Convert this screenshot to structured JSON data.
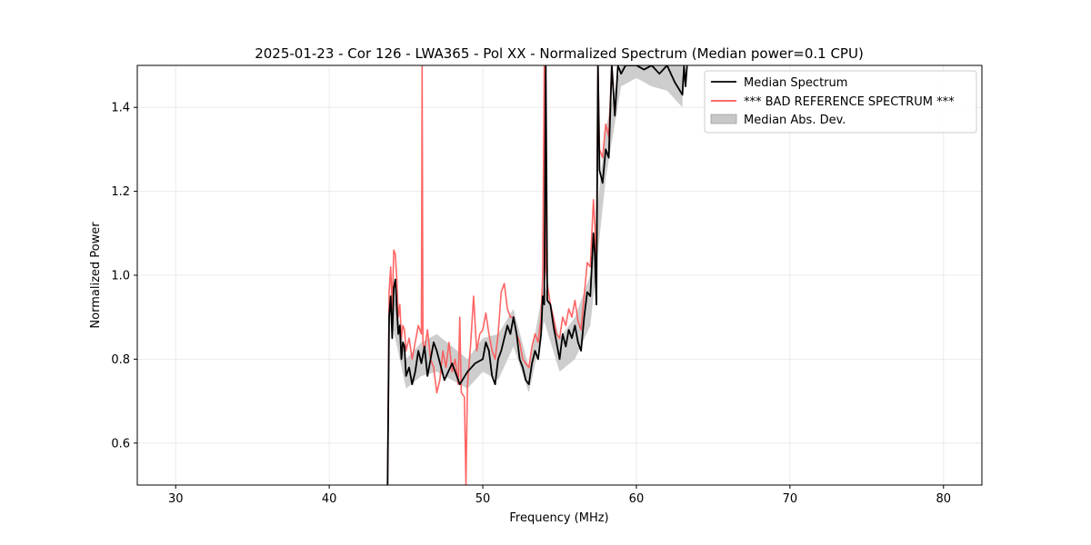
{
  "chart_data": {
    "type": "line",
    "title": "2025-01-23 - Cor 126 - LWA365 - Pol XX - Normalized Spectrum (Median power=0.1 CPU)",
    "xlabel": "Frequency (MHz)",
    "ylabel": "Normalized Power",
    "xlim": [
      27.5,
      82.5
    ],
    "ylim": [
      0.5,
      1.5
    ],
    "xticks": [
      30,
      40,
      50,
      60,
      70,
      80
    ],
    "xtick_labels": [
      "30",
      "40",
      "50",
      "60",
      "70",
      "80"
    ],
    "yticks": [
      0.6,
      0.8,
      1.0,
      1.2,
      1.4
    ],
    "ytick_labels": [
      "0.6",
      "0.8",
      "1.0",
      "1.2",
      "1.4"
    ],
    "grid": true,
    "legend_position": "top-right",
    "colors": {
      "median": "#000000",
      "reference": "#ff5555",
      "mad_fill": "#c8c8c8",
      "grid": "#e6e6e6"
    },
    "series": [
      {
        "name": "Median Spectrum",
        "style": "line",
        "color": "#000000",
        "x": [
          43.8,
          43.9,
          44.0,
          44.1,
          44.2,
          44.3,
          44.4,
          44.5,
          44.6,
          44.7,
          44.8,
          44.9,
          45.0,
          45.2,
          45.4,
          45.6,
          45.8,
          46.0,
          46.2,
          46.4,
          46.6,
          46.8,
          47.0,
          47.5,
          48.0,
          48.5,
          49.0,
          49.5,
          50.0,
          50.2,
          50.4,
          50.6,
          50.8,
          51.0,
          51.2,
          51.4,
          51.6,
          51.8,
          52.0,
          52.2,
          52.4,
          52.6,
          52.8,
          53.0,
          53.2,
          53.4,
          53.6,
          53.8,
          53.9,
          54.0,
          54.1,
          54.2,
          54.4,
          54.6,
          54.8,
          55.0,
          55.2,
          55.4,
          55.6,
          55.8,
          56.0,
          56.2,
          56.4,
          56.6,
          56.8,
          57.0,
          57.2,
          57.3,
          57.4,
          57.5,
          57.6,
          57.8,
          58.0,
          58.2,
          58.4,
          58.6,
          58.8,
          59.0,
          59.3,
          59.6,
          60.0,
          60.5,
          61.0,
          61.5,
          62.0,
          62.5,
          63.0,
          63.1,
          63.2,
          63.3
        ],
        "y": [
          0.5,
          0.9,
          0.95,
          0.85,
          0.97,
          0.99,
          0.92,
          0.86,
          0.88,
          0.8,
          0.84,
          0.83,
          0.76,
          0.78,
          0.74,
          0.77,
          0.82,
          0.79,
          0.83,
          0.76,
          0.8,
          0.84,
          0.82,
          0.75,
          0.79,
          0.74,
          0.77,
          0.79,
          0.8,
          0.84,
          0.82,
          0.76,
          0.74,
          0.8,
          0.82,
          0.85,
          0.88,
          0.86,
          0.9,
          0.86,
          0.8,
          0.78,
          0.75,
          0.74,
          0.79,
          0.82,
          0.8,
          0.86,
          0.95,
          0.93,
          1.5,
          0.94,
          0.93,
          0.88,
          0.84,
          0.8,
          0.86,
          0.83,
          0.87,
          0.85,
          0.88,
          0.84,
          0.82,
          0.9,
          0.96,
          0.95,
          1.1,
          1.05,
          0.93,
          1.5,
          1.25,
          1.22,
          1.3,
          1.28,
          1.5,
          1.38,
          1.5,
          1.48,
          1.5,
          1.5,
          1.5,
          1.49,
          1.5,
          1.48,
          1.5,
          1.46,
          1.43,
          1.5,
          1.45,
          1.5
        ]
      },
      {
        "name": "*** BAD REFERENCE SPECTRUM ***",
        "style": "line",
        "color": "#ff5555",
        "x": [
          43.8,
          43.9,
          44.0,
          44.1,
          44.2,
          44.3,
          44.4,
          44.5,
          44.6,
          44.7,
          44.8,
          44.9,
          45.0,
          45.2,
          45.4,
          45.6,
          45.8,
          46.0,
          46.05,
          46.1,
          46.2,
          46.4,
          46.6,
          46.8,
          47.0,
          47.2,
          47.4,
          47.6,
          47.8,
          48.0,
          48.2,
          48.4,
          48.5,
          48.6,
          48.8,
          48.9,
          49.0,
          49.2,
          49.4,
          49.6,
          49.8,
          50.0,
          50.2,
          50.4,
          50.6,
          50.8,
          51.0,
          51.2,
          51.4,
          51.6,
          51.8,
          52.0,
          52.2,
          52.4,
          52.6,
          52.8,
          53.0,
          53.2,
          53.4,
          53.6,
          53.8,
          53.9,
          54.0,
          54.1,
          54.2,
          54.4,
          54.6,
          54.8,
          55.0,
          55.2,
          55.4,
          55.6,
          55.8,
          56.0,
          56.2,
          56.4,
          56.6,
          56.8,
          57.0,
          57.2,
          57.3,
          57.4,
          57.5,
          57.6,
          57.8,
          58.0,
          58.2,
          58.4,
          58.5
        ],
        "y": [
          0.5,
          0.96,
          1.02,
          0.92,
          1.06,
          1.05,
          0.99,
          0.9,
          0.93,
          0.85,
          0.88,
          0.87,
          0.82,
          0.85,
          0.8,
          0.84,
          0.88,
          0.86,
          1.5,
          0.84,
          0.82,
          0.87,
          0.8,
          0.78,
          0.72,
          0.75,
          0.82,
          0.78,
          0.84,
          0.77,
          0.8,
          0.74,
          0.9,
          0.72,
          0.71,
          0.5,
          0.74,
          0.83,
          0.95,
          0.82,
          0.86,
          0.87,
          0.91,
          0.86,
          0.82,
          0.8,
          0.86,
          0.96,
          0.98,
          0.92,
          0.9,
          0.9,
          0.86,
          0.84,
          0.8,
          0.79,
          0.78,
          0.83,
          0.86,
          0.84,
          0.9,
          1.0,
          1.5,
          1.02,
          0.98,
          0.93,
          0.9,
          0.86,
          0.85,
          0.9,
          0.88,
          0.92,
          0.9,
          0.94,
          0.89,
          0.87,
          0.95,
          1.03,
          1.02,
          1.18,
          1.12,
          1.0,
          1.5,
          1.3,
          1.28,
          1.36,
          1.33,
          1.5,
          1.45
        ]
      },
      {
        "name": "Median Abs. Dev.",
        "style": "band",
        "color": "#c8c8c8",
        "x": [
          44.0,
          45.0,
          46.0,
          47.0,
          48.0,
          49.0,
          50.0,
          51.0,
          52.0,
          53.0,
          54.0,
          55.0,
          56.0,
          57.0,
          58.0,
          59.0,
          60.0,
          61.0,
          62.0,
          63.0
        ],
        "lower": [
          0.9,
          0.73,
          0.76,
          0.77,
          0.75,
          0.73,
          0.77,
          0.75,
          0.83,
          0.72,
          0.89,
          0.77,
          0.8,
          0.88,
          1.23,
          1.45,
          1.47,
          1.45,
          1.44,
          1.4
        ],
        "upper": [
          1.0,
          0.8,
          0.84,
          0.86,
          0.83,
          0.8,
          0.85,
          0.86,
          0.92,
          0.78,
          0.98,
          0.85,
          0.9,
          1.0,
          1.35,
          1.5,
          1.5,
          1.5,
          1.5,
          1.5
        ]
      }
    ]
  }
}
